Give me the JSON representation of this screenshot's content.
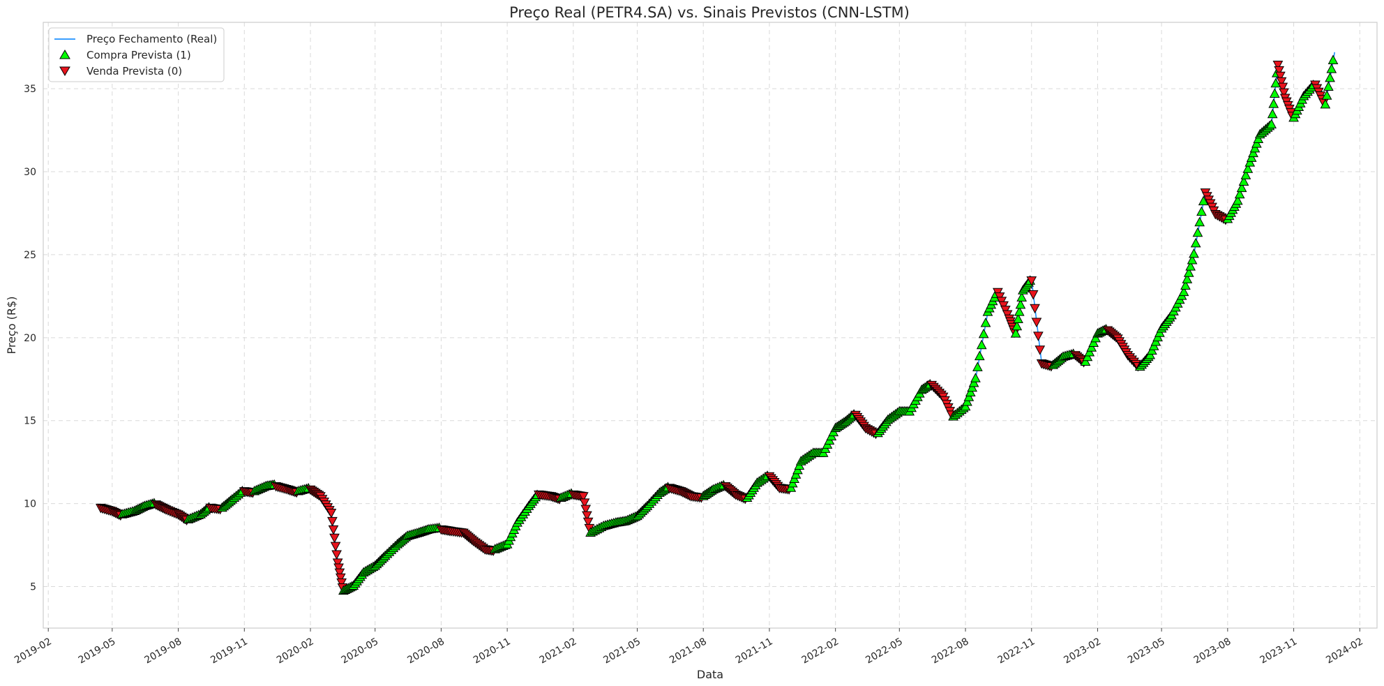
{
  "chart_data": {
    "type": "line",
    "title": "Preço Real (PETR4.SA) vs. Sinais Previstos (CNN-LSTM)",
    "xlabel": "Data",
    "ylabel": "Preço (R$)",
    "xlim": [
      "2019-01-25",
      "2024-02-25"
    ],
    "ylim": [
      2.5,
      39.0
    ],
    "x_ticks": [
      "2019-02",
      "2019-05",
      "2019-08",
      "2019-11",
      "2020-02",
      "2020-05",
      "2020-08",
      "2020-11",
      "2021-02",
      "2021-05",
      "2021-08",
      "2021-11",
      "2022-02",
      "2022-05",
      "2022-08",
      "2022-11",
      "2023-02",
      "2023-05",
      "2023-08",
      "2023-11",
      "2024-02"
    ],
    "y_ticks": [
      5,
      10,
      15,
      20,
      25,
      30,
      35
    ],
    "grid": true,
    "legend_position": "top-left",
    "colors": {
      "line": "#1e90ff",
      "buy": "#00ff00",
      "sell": "#e8141d",
      "edge": "#000000"
    },
    "series": [
      {
        "name": "Preço Fechamento (Real)",
        "kind": "line",
        "x": [
          "2019-04-15",
          "2019-05-01",
          "2019-05-15",
          "2019-06-01",
          "2019-06-15",
          "2019-07-01",
          "2019-07-15",
          "2019-08-01",
          "2019-08-15",
          "2019-09-01",
          "2019-09-15",
          "2019-10-01",
          "2019-10-15",
          "2019-11-01",
          "2019-11-15",
          "2019-12-01",
          "2019-12-15",
          "2020-01-01",
          "2020-01-15",
          "2020-02-01",
          "2020-02-15",
          "2020-03-01",
          "2020-03-10",
          "2020-03-18",
          "2020-04-01",
          "2020-04-15",
          "2020-05-01",
          "2020-05-15",
          "2020-06-01",
          "2020-06-15",
          "2020-07-01",
          "2020-07-15",
          "2020-08-01",
          "2020-08-15",
          "2020-09-01",
          "2020-09-15",
          "2020-10-01",
          "2020-10-15",
          "2020-11-01",
          "2020-11-15",
          "2020-12-01",
          "2020-12-15",
          "2021-01-01",
          "2021-01-15",
          "2021-02-01",
          "2021-02-15",
          "2021-02-25",
          "2021-03-15",
          "2021-04-01",
          "2021-04-15",
          "2021-05-01",
          "2021-05-15",
          "2021-06-01",
          "2021-06-15",
          "2021-07-01",
          "2021-07-15",
          "2021-08-01",
          "2021-08-15",
          "2021-09-01",
          "2021-09-15",
          "2021-10-01",
          "2021-10-15",
          "2021-11-01",
          "2021-11-15",
          "2021-12-01",
          "2021-12-15",
          "2022-01-01",
          "2022-01-15",
          "2022-02-01",
          "2022-02-15",
          "2022-03-01",
          "2022-03-15",
          "2022-04-01",
          "2022-04-15",
          "2022-05-01",
          "2022-05-15",
          "2022-06-01",
          "2022-06-15",
          "2022-07-01",
          "2022-07-15",
          "2022-08-01",
          "2022-08-15",
          "2022-09-01",
          "2022-09-15",
          "2022-10-01",
          "2022-10-10",
          "2022-10-20",
          "2022-11-01",
          "2022-11-15",
          "2022-12-01",
          "2022-12-15",
          "2023-01-01",
          "2023-01-15",
          "2023-02-01",
          "2023-02-15",
          "2023-03-01",
          "2023-03-15",
          "2023-04-01",
          "2023-04-15",
          "2023-05-01",
          "2023-05-15",
          "2023-06-01",
          "2023-06-15",
          "2023-07-01",
          "2023-07-15",
          "2023-08-01",
          "2023-08-15",
          "2023-09-01",
          "2023-09-15",
          "2023-10-01",
          "2023-10-10",
          "2023-10-20",
          "2023-11-01",
          "2023-11-15",
          "2023-12-01",
          "2023-12-15",
          "2023-12-28"
        ],
        "values": [
          9.8,
          9.6,
          9.3,
          9.5,
          9.8,
          10.0,
          9.7,
          9.4,
          9.0,
          9.3,
          9.8,
          9.7,
          10.2,
          10.8,
          10.7,
          11.0,
          11.1,
          10.9,
          10.7,
          10.9,
          10.5,
          9.5,
          6.5,
          4.7,
          5.0,
          5.8,
          6.2,
          6.8,
          7.5,
          8.0,
          8.2,
          8.4,
          8.5,
          8.4,
          8.3,
          7.8,
          7.3,
          7.2,
          7.5,
          8.8,
          9.8,
          10.6,
          10.5,
          10.3,
          10.6,
          10.5,
          8.2,
          8.6,
          8.8,
          8.9,
          9.2,
          9.8,
          10.6,
          11.0,
          10.8,
          10.5,
          10.4,
          10.8,
          11.1,
          10.6,
          10.3,
          11.2,
          11.7,
          11.0,
          10.9,
          12.5,
          13.0,
          13.0,
          14.5,
          14.9,
          15.4,
          14.6,
          14.2,
          15.0,
          15.5,
          15.5,
          16.8,
          17.2,
          16.5,
          15.2,
          15.8,
          17.5,
          21.5,
          22.8,
          21.2,
          20.2,
          22.8,
          23.5,
          18.5,
          18.3,
          18.8,
          19.0,
          18.5,
          20.2,
          20.5,
          20.0,
          19.0,
          18.2,
          18.9,
          20.5,
          21.3,
          22.7,
          25.0,
          28.8,
          27.5,
          27.1,
          28.2,
          30.5,
          32.2,
          32.8,
          36.5,
          34.5,
          33.2,
          34.5,
          35.3,
          34.0,
          37.2
        ]
      },
      {
        "name": "Compra Prevista (1)",
        "kind": "marker",
        "marker": "triangle-up"
      },
      {
        "name": "Venda Prevista (0)",
        "kind": "marker",
        "marker": "triangle-down"
      }
    ]
  }
}
